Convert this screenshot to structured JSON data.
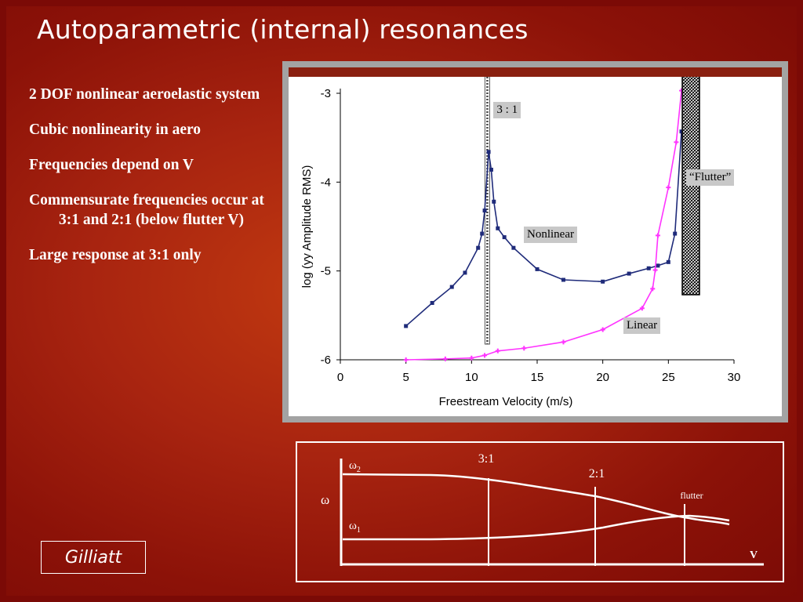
{
  "slide": {
    "title": "Autoparametric (internal) resonances",
    "credit": "Gilliatt"
  },
  "bullets": [
    "2 DOF nonlinear aeroelastic system",
    "Cubic nonlinearity in aero",
    "Frequencies depend on V",
    "Commensurate frequencies occur at 3:1 and 2:1 (below flutter V)",
    "Large response at 3:1 only"
  ],
  "colors": {
    "background": "#a82410",
    "nonlinear_series": "#1f2b7a",
    "linear_series": "#ff33ff",
    "text": "#ffffff"
  },
  "chart_data": [
    {
      "type": "line",
      "title": "",
      "xlabel": "Freestream Velocity (m/s)",
      "ylabel": "log (yy Amplitude RMS)",
      "xlim": [
        0,
        30
      ],
      "ylim": [
        -6,
        -3
      ],
      "xticks": [
        "0",
        "5",
        "10",
        "15",
        "20",
        "25",
        "30"
      ],
      "yticks": [
        "-3",
        "-4",
        "-5",
        "-6"
      ],
      "grid": false,
      "series": [
        {
          "name": "Nonlinear",
          "color": "#1f2b7a",
          "x": [
            5,
            7,
            8.5,
            9.5,
            10.5,
            10.8,
            11,
            11.3,
            11.5,
            11.7,
            12,
            12.5,
            13.2,
            15,
            17,
            20,
            22,
            23.5,
            24.2,
            25,
            25.5,
            26
          ],
          "y": [
            -5.62,
            -5.36,
            -5.18,
            -5.02,
            -4.74,
            -4.58,
            -4.32,
            -3.66,
            -3.86,
            -4.22,
            -4.52,
            -4.62,
            -4.74,
            -4.98,
            -5.1,
            -5.12,
            -5.03,
            -4.97,
            -4.94,
            -4.9,
            -4.58,
            -3.43
          ]
        },
        {
          "name": "Linear",
          "color": "#ff33ff",
          "x": [
            5,
            8,
            10,
            11,
            12,
            14,
            17,
            20,
            23,
            23.8,
            24,
            24.2,
            25,
            25.6,
            26
          ],
          "y": [
            -6.0,
            -5.99,
            -5.98,
            -5.95,
            -5.9,
            -5.87,
            -5.8,
            -5.66,
            -5.42,
            -5.2,
            -4.99,
            -4.6,
            -4.06,
            -3.55,
            -2.97
          ]
        }
      ],
      "annotations": {
        "resonance_label": "3 : 1",
        "resonance_v": 11.2,
        "flutter_label": "“Flutter”",
        "flutter_v": 27,
        "nonlinear_label": "Nonlinear",
        "linear_label": "Linear"
      }
    }
  ],
  "diagram": {
    "omega_label": "ω",
    "omega2_label": "ω",
    "omega2_sub": "2",
    "omega1_label": "ω",
    "omega1_sub": "1",
    "v_label": "V",
    "markers": [
      {
        "label": "3:1"
      },
      {
        "label": "2:1"
      },
      {
        "label": "flutter"
      }
    ]
  }
}
